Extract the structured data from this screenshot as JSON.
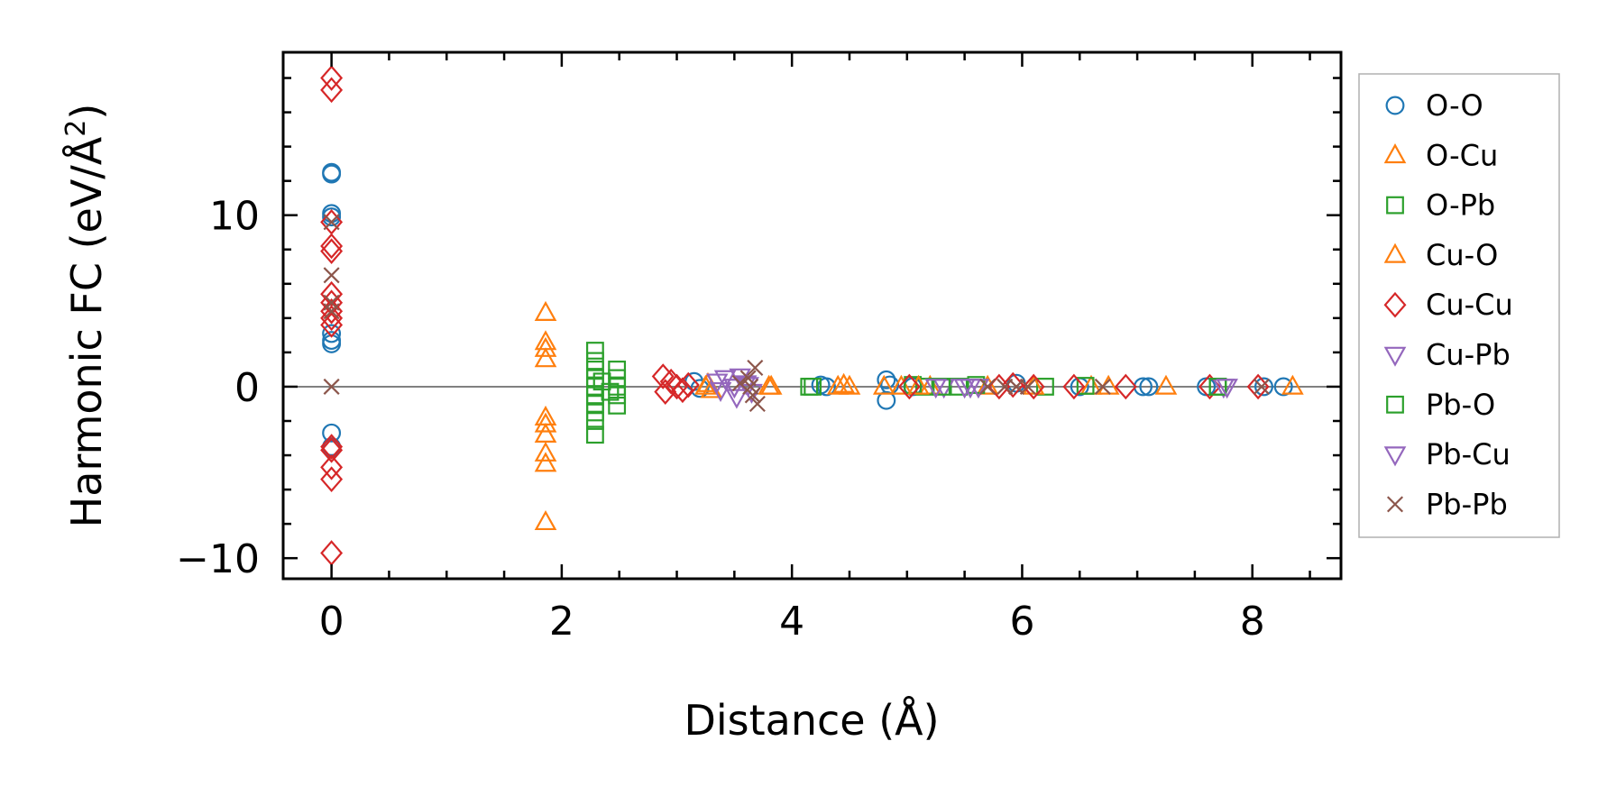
{
  "chart_data": {
    "type": "scatter",
    "title": "",
    "xlabel": "Distance (Å)",
    "ylabel_main": "Harmonic FC (eV/Å",
    "ylabel_sup": "2",
    "ylabel_close": ")",
    "xlim": [
      -0.42,
      8.77
    ],
    "ylim": [
      -11.2,
      19.5
    ],
    "xticks": [
      0,
      2,
      4,
      6,
      8
    ],
    "xtick_labels": [
      "0",
      "2",
      "4",
      "6",
      "8"
    ],
    "yticks": [
      -10,
      0,
      10
    ],
    "ytick_labels": [
      "−10",
      "0",
      "10"
    ],
    "x_minor_step": 0.5,
    "y_minor_step": 2,
    "hline": 0,
    "legend_position": "outside-right",
    "series": [
      {
        "name": "O-O",
        "marker": "circle",
        "color": "#1f77b4",
        "points": [
          [
            0,
            12.5
          ],
          [
            0,
            12.4
          ],
          [
            0,
            10.1
          ],
          [
            0,
            9.9
          ],
          [
            0,
            3.1
          ],
          [
            0,
            2.7
          ],
          [
            0,
            2.5
          ],
          [
            0,
            -2.7
          ],
          [
            0,
            -3.5
          ],
          [
            0,
            -3.6
          ],
          [
            3.15,
            0.3
          ],
          [
            3.2,
            -0.1
          ],
          [
            4.25,
            0.1
          ],
          [
            4.3,
            0
          ],
          [
            4.82,
            0.4
          ],
          [
            4.82,
            -0.8
          ],
          [
            4.85,
            0.1
          ],
          [
            5.05,
            0
          ],
          [
            5.95,
            0.2
          ],
          [
            6.5,
            0
          ],
          [
            7.05,
            0
          ],
          [
            7.1,
            0
          ],
          [
            7.6,
            0
          ],
          [
            8.1,
            0
          ],
          [
            8.27,
            0
          ]
        ]
      },
      {
        "name": "O-Cu",
        "marker": "triangle-up",
        "color": "#ff7f0e",
        "points": [
          [
            1.86,
            4.3
          ],
          [
            1.86,
            2.6
          ],
          [
            1.86,
            2.2
          ],
          [
            1.86,
            1.6
          ],
          [
            1.86,
            -1.8
          ],
          [
            1.86,
            -2.2
          ],
          [
            1.86,
            -2.8
          ],
          [
            1.86,
            -3.9
          ],
          [
            1.86,
            -4.5
          ],
          [
            1.86,
            -7.9
          ],
          [
            3.25,
            0
          ],
          [
            3.3,
            -0.2
          ],
          [
            3.8,
            0
          ],
          [
            4.4,
            0
          ],
          [
            4.5,
            0
          ],
          [
            4.8,
            0
          ],
          [
            4.95,
            0
          ],
          [
            5.2,
            0
          ],
          [
            5.7,
            0
          ],
          [
            6.6,
            0
          ],
          [
            7.25,
            0
          ],
          [
            8.35,
            0
          ]
        ]
      },
      {
        "name": "O-Pb",
        "marker": "square",
        "color": "#2ca02c",
        "points": [
          [
            2.29,
            2.1
          ],
          [
            2.29,
            1.5
          ],
          [
            2.29,
            1.0
          ],
          [
            2.29,
            0.5
          ],
          [
            2.29,
            0
          ],
          [
            2.29,
            -0.5
          ],
          [
            2.29,
            -1.0
          ],
          [
            2.29,
            -1.5
          ],
          [
            2.29,
            -2.0
          ],
          [
            2.29,
            -2.8
          ],
          [
            2.48,
            1.0
          ],
          [
            2.48,
            0.5
          ],
          [
            2.48,
            0
          ],
          [
            2.48,
            -0.5
          ],
          [
            2.48,
            -1.1
          ],
          [
            4.15,
            0
          ],
          [
            5.05,
            0.1
          ],
          [
            5.15,
            0
          ],
          [
            5.45,
            0
          ],
          [
            5.6,
            0.1
          ],
          [
            6.2,
            0
          ],
          [
            6.55,
            0.05
          ],
          [
            7.7,
            0
          ]
        ]
      },
      {
        "name": "Cu-O",
        "marker": "triangle-up",
        "color": "#ff7f0e",
        "points": [
          [
            3.27,
            0.15
          ],
          [
            3.82,
            0
          ],
          [
            4.45,
            0.1
          ],
          [
            5.1,
            0
          ],
          [
            6.1,
            0
          ],
          [
            6.75,
            0
          ]
        ]
      },
      {
        "name": "Cu-Cu",
        "marker": "diamond",
        "color": "#d62728",
        "points": [
          [
            0,
            18.0
          ],
          [
            0,
            17.3
          ],
          [
            0,
            9.6
          ],
          [
            0,
            8.2
          ],
          [
            0,
            7.9
          ],
          [
            0,
            5.4
          ],
          [
            0,
            4.9
          ],
          [
            0,
            4.4
          ],
          [
            0,
            4.0
          ],
          [
            0,
            3.6
          ],
          [
            0,
            -3.5
          ],
          [
            0,
            -3.7
          ],
          [
            0,
            -4.7
          ],
          [
            0,
            -5.4
          ],
          [
            0,
            -9.7
          ],
          [
            2.88,
            0.6
          ],
          [
            2.95,
            0.3
          ],
          [
            3.0,
            0
          ],
          [
            2.9,
            -0.3
          ],
          [
            3.05,
            -0.2
          ],
          [
            3.1,
            0.1
          ],
          [
            5.02,
            0
          ],
          [
            5.8,
            0
          ],
          [
            5.92,
            0.1
          ],
          [
            6.1,
            0
          ],
          [
            6.45,
            0
          ],
          [
            6.9,
            0
          ],
          [
            7.63,
            0
          ],
          [
            8.05,
            0
          ]
        ]
      },
      {
        "name": "Cu-Pb",
        "marker": "triangle-down",
        "color": "#9467bd",
        "points": [
          [
            3.35,
            0.3
          ],
          [
            3.42,
            0.5
          ],
          [
            3.5,
            0
          ],
          [
            3.52,
            -0.6
          ],
          [
            3.6,
            0.2
          ],
          [
            3.65,
            -0.3
          ],
          [
            5.32,
            0
          ],
          [
            5.5,
            0
          ],
          [
            5.62,
            0
          ],
          [
            7.75,
            0
          ]
        ]
      },
      {
        "name": "Pb-O",
        "marker": "square",
        "color": "#2ca02c",
        "points": [
          [
            2.35,
            0.3
          ],
          [
            2.42,
            -0.3
          ],
          [
            4.18,
            0
          ],
          [
            5.3,
            0
          ],
          [
            7.7,
            0
          ]
        ]
      },
      {
        "name": "Pb-Cu",
        "marker": "triangle-down",
        "color": "#9467bd",
        "points": [
          [
            3.38,
            -0.2
          ],
          [
            3.55,
            0.6
          ],
          [
            3.62,
            0.1
          ],
          [
            5.25,
            0
          ],
          [
            5.55,
            0
          ],
          [
            7.78,
            0
          ]
        ]
      },
      {
        "name": "Pb-Pb",
        "marker": "x",
        "color": "#8c564b",
        "points": [
          [
            0,
            9.6
          ],
          [
            0,
            6.5
          ],
          [
            0,
            4.9
          ],
          [
            0,
            4.4
          ],
          [
            0,
            0
          ],
          [
            3.62,
            0.5
          ],
          [
            3.64,
            0
          ],
          [
            3.66,
            -0.5
          ],
          [
            3.68,
            1.1
          ],
          [
            3.7,
            -1.0
          ],
          [
            3.55,
            0.2
          ],
          [
            5.7,
            0
          ],
          [
            5.85,
            0
          ],
          [
            5.95,
            0
          ],
          [
            6.05,
            0
          ],
          [
            6.7,
            0
          ],
          [
            8.08,
            0
          ]
        ]
      }
    ]
  }
}
